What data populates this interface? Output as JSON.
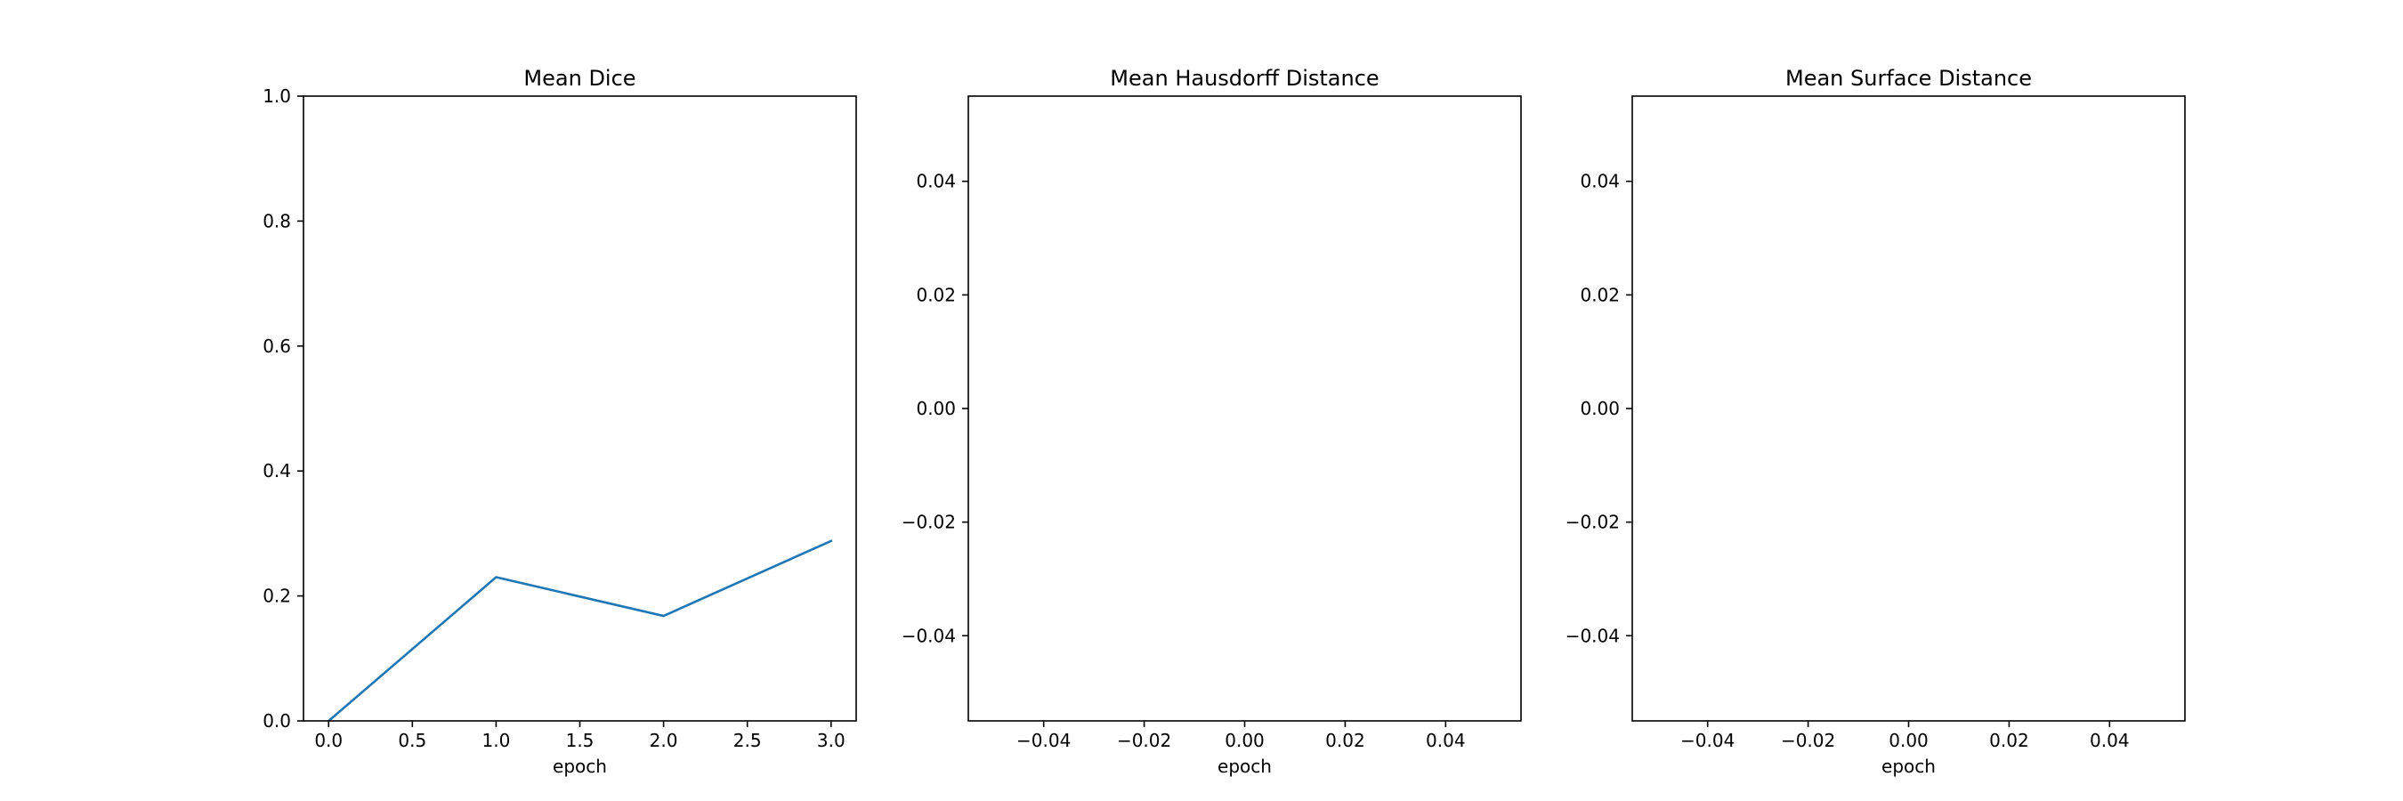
{
  "chart_data": [
    {
      "type": "line",
      "title": "Mean Dice",
      "xlabel": "epoch",
      "ylabel": "",
      "xlim": [
        -0.15,
        3.15
      ],
      "ylim": [
        0.0,
        1.0
      ],
      "xticks": [
        0.0,
        0.5,
        1.0,
        1.5,
        2.0,
        2.5,
        3.0
      ],
      "xtick_labels": [
        "0.0",
        "0.5",
        "1.0",
        "1.5",
        "2.0",
        "2.5",
        "3.0"
      ],
      "yticks": [
        0.0,
        0.2,
        0.4,
        0.6,
        0.8,
        1.0
      ],
      "ytick_labels": [
        "0.0",
        "0.2",
        "0.4",
        "0.6",
        "0.8",
        "1.0"
      ],
      "grid": false,
      "series": [
        {
          "x": [
            0,
            1,
            2,
            3
          ],
          "values": [
            0.0,
            0.23,
            0.168,
            0.288
          ],
          "color": "#1f77b4"
        }
      ]
    },
    {
      "type": "line",
      "title": "Mean Hausdorff Distance",
      "xlabel": "epoch",
      "ylabel": "",
      "xlim": [
        -0.055,
        0.055
      ],
      "ylim": [
        -0.055,
        0.055
      ],
      "xticks": [
        -0.04,
        -0.02,
        0.0,
        0.02,
        0.04
      ],
      "xtick_labels": [
        "−0.04",
        "−0.02",
        "0.00",
        "0.02",
        "0.04"
      ],
      "yticks": [
        -0.04,
        -0.02,
        0.0,
        0.02,
        0.04
      ],
      "ytick_labels": [
        "−0.04",
        "−0.02",
        "0.00",
        "0.02",
        "0.04"
      ],
      "grid": false,
      "series": []
    },
    {
      "type": "line",
      "title": "Mean Surface Distance",
      "xlabel": "epoch",
      "ylabel": "",
      "xlim": [
        -0.055,
        0.055
      ],
      "ylim": [
        -0.055,
        0.055
      ],
      "xticks": [
        -0.04,
        -0.02,
        0.0,
        0.02,
        0.04
      ],
      "xtick_labels": [
        "−0.04",
        "−0.02",
        "0.00",
        "0.02",
        "0.04"
      ],
      "yticks": [
        -0.04,
        -0.02,
        0.0,
        0.02,
        0.04
      ],
      "ytick_labels": [
        "−0.04",
        "−0.02",
        "0.00",
        "0.02",
        "0.04"
      ],
      "grid": false,
      "series": []
    }
  ]
}
